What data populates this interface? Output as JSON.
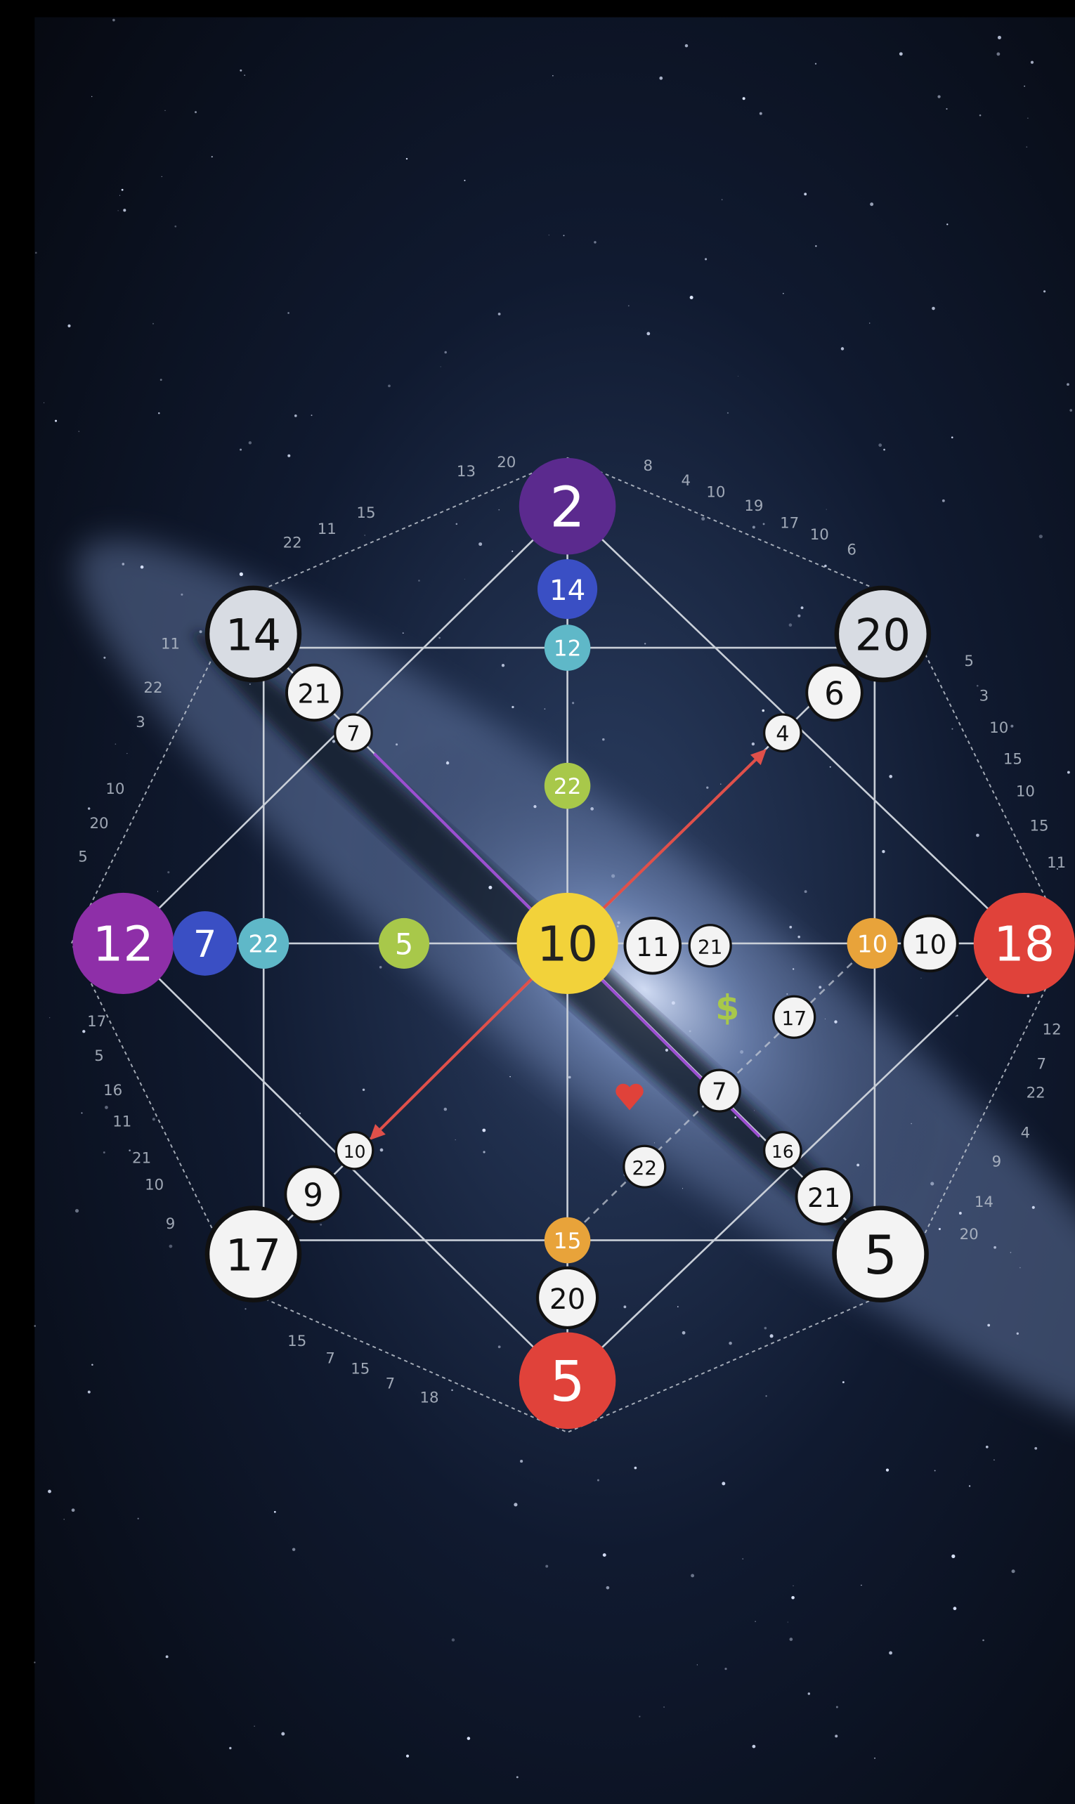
{
  "nodes": [
    {
      "label": "2"
    },
    {
      "label": "14"
    },
    {
      "label": "12"
    },
    {
      "label": "22"
    },
    {
      "label": "10"
    },
    {
      "label": "11"
    },
    {
      "label": "21"
    },
    {
      "label": "12"
    },
    {
      "label": "7"
    },
    {
      "label": "22"
    },
    {
      "label": "5"
    },
    {
      "label": "18"
    },
    {
      "label": "10"
    },
    {
      "label": "10"
    },
    {
      "label": "5"
    },
    {
      "label": "20"
    },
    {
      "label": "15"
    },
    {
      "label": "14"
    },
    {
      "label": "21"
    },
    {
      "label": "7"
    },
    {
      "label": "20"
    },
    {
      "label": "6"
    },
    {
      "label": "4"
    },
    {
      "label": "17"
    },
    {
      "label": "9"
    },
    {
      "label": "10"
    },
    {
      "label": "5"
    },
    {
      "label": "21"
    },
    {
      "label": "16"
    },
    {
      "label": "17"
    },
    {
      "label": "7"
    },
    {
      "label": "22"
    }
  ],
  "symbols": {
    "money": "$"
  },
  "outer_labels": [
    "13",
    "20",
    "8",
    "4",
    "10",
    "19",
    "17",
    "10",
    "6",
    "15",
    "11",
    "22",
    "11",
    "22",
    "3",
    "10",
    "20",
    "5",
    "17",
    "5",
    "16",
    "11",
    "21",
    "10",
    "9",
    "5",
    "3",
    "10",
    "15",
    "10",
    "15",
    "11",
    "12",
    "7",
    "22",
    "4",
    "9",
    "14",
    "20",
    "15",
    "7",
    "15",
    "7",
    "18"
  ]
}
